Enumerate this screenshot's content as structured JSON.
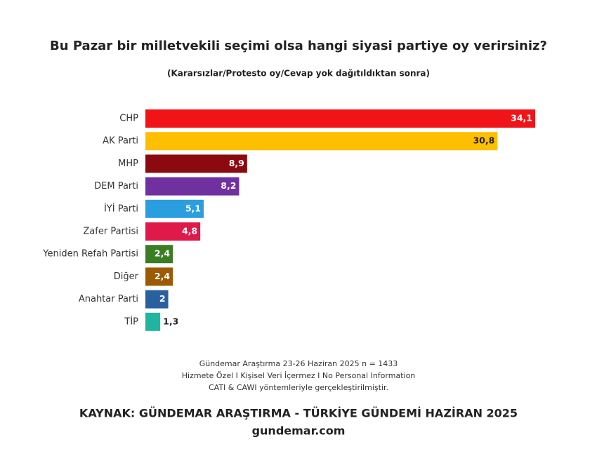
{
  "chart_data": {
    "type": "bar",
    "orientation": "horizontal",
    "title": "Bu Pazar bir milletvekili seçimi olsa hangi siyasi partiye oy verirsiniz?",
    "subtitle": "(Kararsızlar/Protesto oy/Cevap yok dağıtıldıktan sonra)",
    "categories": [
      "CHP",
      "AK Parti",
      "MHP",
      "DEM Parti",
      "İYİ Parti",
      "Zafer Partisi",
      "Yeniden Refah Partisi",
      "Diğer",
      "Anahtar Parti",
      "TİP"
    ],
    "values": [
      34.1,
      30.8,
      8.9,
      8.2,
      5.1,
      4.8,
      2.4,
      2.4,
      2,
      1.3
    ],
    "value_labels": [
      "34,1",
      "30,8",
      "8,9",
      "8,2",
      "5,1",
      "4,8",
      "2,4",
      "2,4",
      "2",
      "1,3"
    ],
    "colors": [
      "#f01418",
      "#fdbf00",
      "#8b0a0f",
      "#7030a0",
      "#2b9ee0",
      "#e0194b",
      "#3a7d22",
      "#9c5a05",
      "#2a5fa0",
      "#1fb5a0"
    ],
    "notes": [
      "Gündemar Araştırma 23-26 Haziran 2025 n = 1433",
      "Hizmete Özel I Kişisel Veri İçermez I No Personal Information",
      "CATI & CAWI yöntemleriyle gerçekleştirilmiştir."
    ],
    "source": "KAYNAK: GÜNDEMAR ARAŞTIRMA - TÜRKİYE GÜNDEMİ HAZİRAN 2025",
    "website": "gundemar.com"
  }
}
